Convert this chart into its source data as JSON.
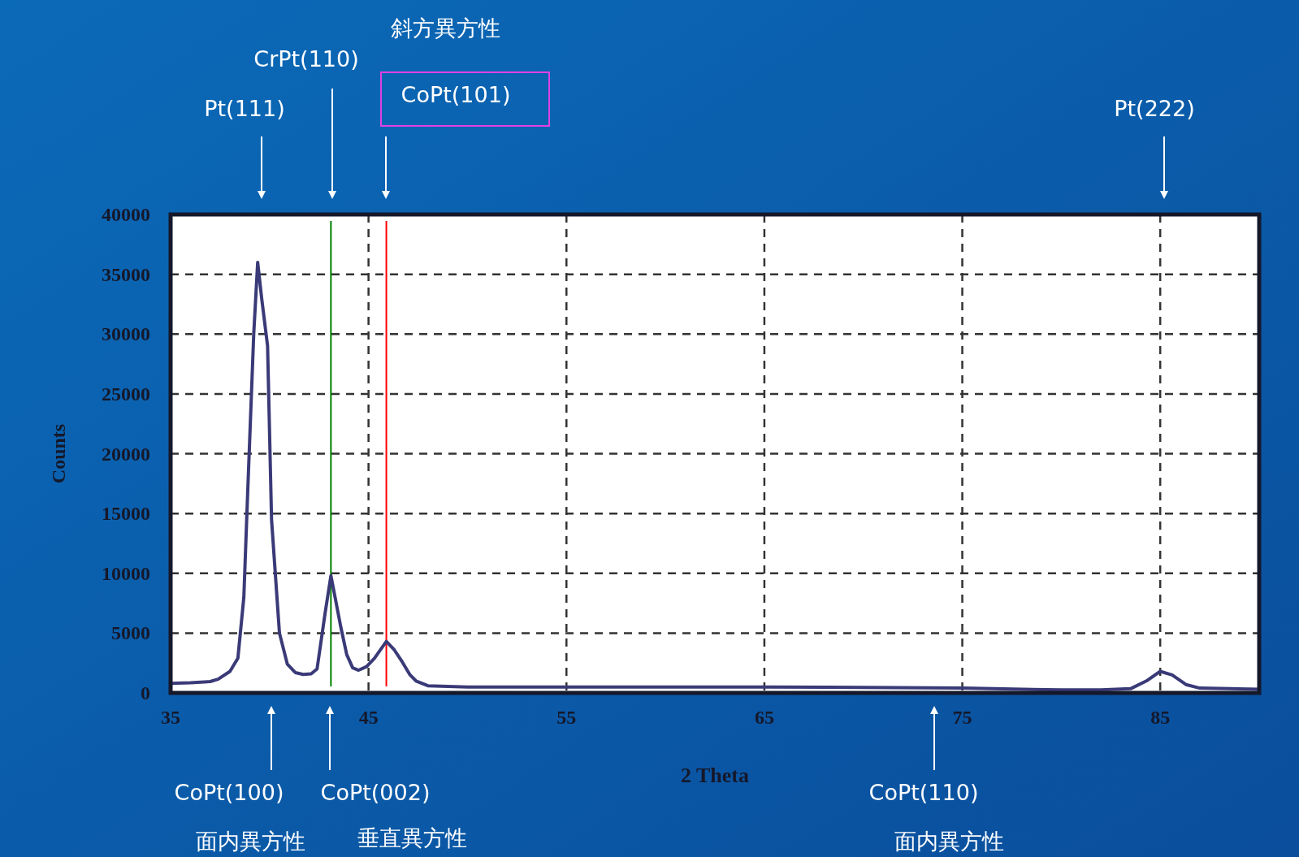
{
  "chart_data": {
    "type": "line",
    "xlabel": "2 Theta",
    "ylabel": "Counts",
    "x": [
      35,
      36,
      37,
      37.4,
      38,
      38.4,
      38.7,
      38.9,
      39.2,
      39.4,
      39.6,
      39.9,
      40.1,
      40.5,
      40.9,
      41.3,
      41.7,
      42.1,
      42.4,
      42.8,
      43.1,
      43.6,
      43.9,
      44.2,
      44.5,
      44.9,
      45.3,
      45.9,
      46.3,
      46.7,
      47.1,
      47.4,
      48,
      50,
      55,
      60,
      65,
      70,
      75,
      80,
      82,
      83.5,
      84.3,
      85,
      85.6,
      86.3,
      87,
      90
    ],
    "series": [
      {
        "color": "#3a3a78",
        "values": [
          800,
          850,
          950,
          1150,
          1800,
          2900,
          8000,
          17000,
          30000,
          36000,
          33000,
          29000,
          14500,
          5000,
          2400,
          1700,
          1550,
          1600,
          2000,
          6600,
          9800,
          5500,
          3200,
          2100,
          1900,
          2200,
          2900,
          4300,
          3600,
          2600,
          1500,
          1000,
          600,
          500,
          500,
          500,
          500,
          450,
          400,
          250,
          250,
          350,
          1000,
          1800,
          1500,
          700,
          400,
          300
        ]
      }
    ],
    "xlim": [
      35,
      90
    ],
    "ylim": [
      0,
      40000
    ],
    "xticks": [
      35,
      45,
      55,
      65,
      75,
      85
    ],
    "yticks": [
      0,
      5000,
      10000,
      15000,
      20000,
      25000,
      30000,
      35000,
      40000
    ],
    "grid": true,
    "ref_lines": [
      {
        "axis": "x",
        "value": 43.1,
        "color": "#008000"
      },
      {
        "axis": "x",
        "value": 45.9,
        "color": "#ff0000"
      }
    ],
    "annotations": [
      "Pt(111)",
      "CrPt(110)",
      "CoPt(101)",
      "斜方異方性",
      "Pt(222)",
      "CoPt(100)",
      "面内異方性",
      "CoPt(002)",
      "垂直異方性",
      "CoPt(110)",
      "面内異方性"
    ]
  }
}
